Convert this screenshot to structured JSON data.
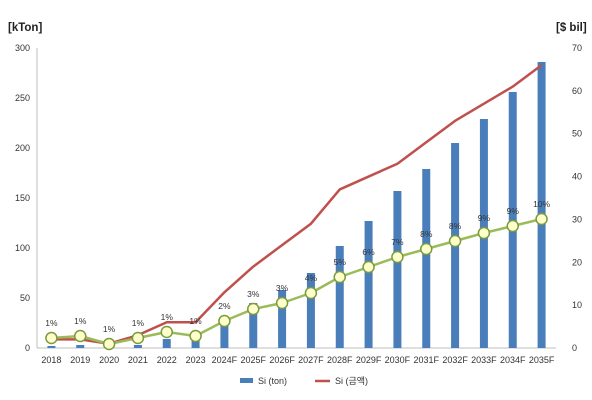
{
  "chart_data": {
    "type": "bar",
    "left_axis_unit": "[kTon]",
    "right_axis_unit": "[$ bil]",
    "categories": [
      "2018",
      "2019",
      "2020",
      "2021",
      "2022",
      "2023",
      "2024F",
      "2025F",
      "2026F",
      "2027F",
      "2028F",
      "2029F",
      "2030F",
      "2031F",
      "2032F",
      "2033F",
      "2034F",
      "2035F"
    ],
    "ylim_left": [
      0,
      300
    ],
    "ylim_right": [
      0,
      70
    ],
    "yticks_left": [
      "0",
      "50",
      "100",
      "150",
      "200",
      "250",
      "300"
    ],
    "yticks_right": [
      "0",
      "10",
      "20",
      "30",
      "40",
      "50",
      "60",
      "70"
    ],
    "series": [
      {
        "name": "Si (ton)",
        "type": "bar",
        "axis": "left",
        "color": "#4a7ebb",
        "values": [
          2,
          3,
          1,
          3,
          9,
          9,
          30,
          45,
          58,
          75,
          102,
          127,
          157,
          179,
          205,
          229,
          256,
          286
        ]
      },
      {
        "name": "Si (금액)",
        "type": "line",
        "axis": "right",
        "color": "#c0504d",
        "values": [
          2,
          2,
          1,
          3,
          6,
          6,
          13,
          19,
          24,
          29,
          37,
          40,
          43,
          48,
          53,
          57,
          61,
          66
        ]
      }
    ],
    "share_line": {
      "color": "#9bbb59",
      "marker_fill": "#ffffcc",
      "marker_stroke": "#7a9a3c",
      "values_left": [
        10,
        12,
        4,
        10,
        16,
        12,
        27,
        39,
        45,
        55,
        71,
        81,
        91,
        99,
        107,
        115,
        122,
        129
      ],
      "labels": [
        "1%",
        "1%",
        "1%",
        "1%",
        "1%",
        "1%",
        "2%",
        "3%",
        "3%",
        "4%",
        "5%",
        "6%",
        "7%",
        "8%",
        "8%",
        "9%",
        "9%",
        "10%"
      ]
    },
    "grid": false,
    "legend": "bottom"
  }
}
